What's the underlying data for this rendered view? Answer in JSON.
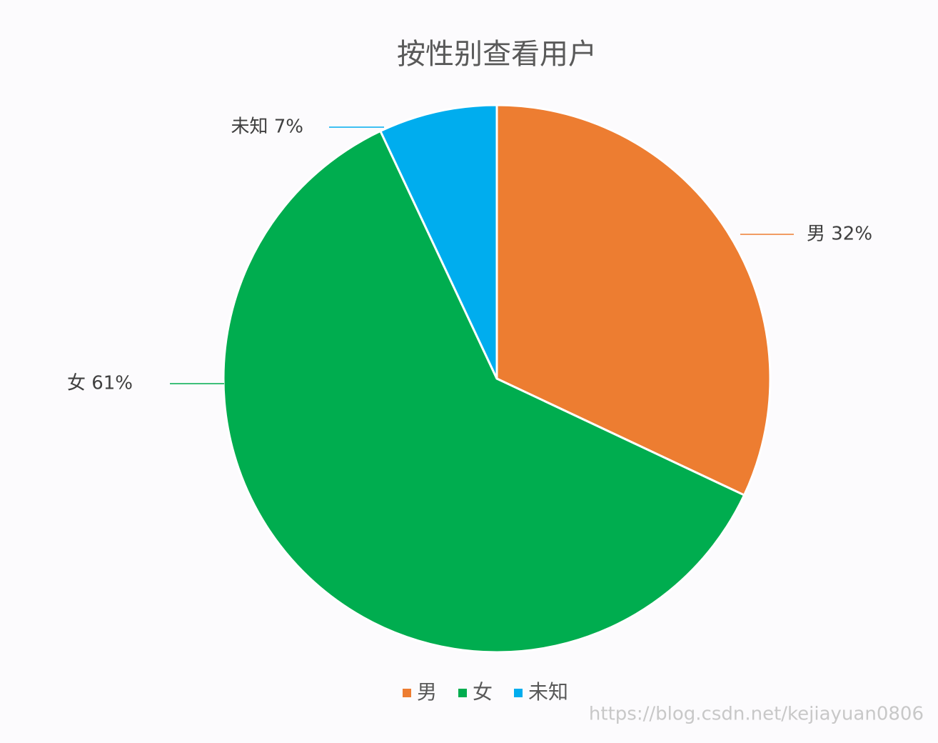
{
  "chart_data": {
    "type": "pie",
    "title": "按性别查看用户",
    "categories": [
      "男",
      "女",
      "未知"
    ],
    "values": [
      32,
      61,
      7
    ],
    "value_labels": [
      "男 32%",
      "女 61%",
      "未知 7%"
    ],
    "colors": [
      "#ed7d31",
      "#00ad4f",
      "#00adee"
    ],
    "legend": "bottom",
    "watermark": "https://blog.csdn.net/kejiayuan0806"
  }
}
